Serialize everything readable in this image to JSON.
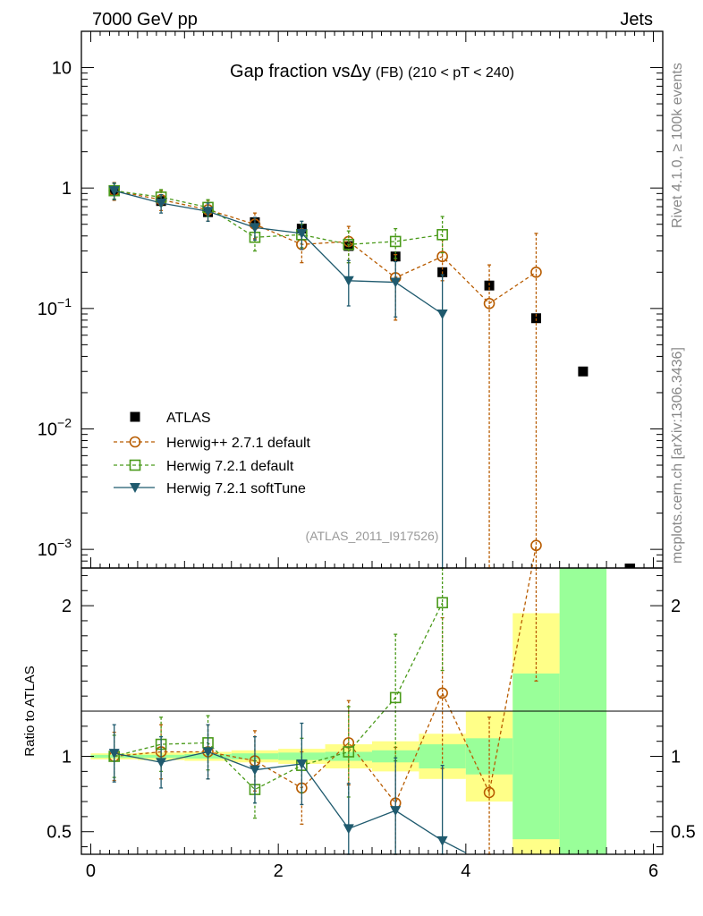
{
  "header": {
    "left": "7000 GeV pp",
    "right": "Jets"
  },
  "side": {
    "rivet": "Rivet 4.1.0, ≥ 100k events",
    "mcplots": "mcplots.cern.ch [arXiv:1306.3436]"
  },
  "chart_data": {
    "type": "scatter",
    "title_main": "Gap fraction vs",
    "title_delta": "Δy",
    "title_fb": "(FB)",
    "title_range": "(210 < pT < 240)",
    "watermark": "(ATLAS_2011_I917526)",
    "main_yscale": "log",
    "main_ylim": [
      0.0007,
      20
    ],
    "xlim": [
      -0.1,
      6.1
    ],
    "main_yticks": [
      {
        "value": 10,
        "label": "10"
      },
      {
        "value": 1,
        "label": "1"
      },
      {
        "value": 0.1,
        "base": "10",
        "exp": "−1"
      },
      {
        "value": 0.01,
        "base": "10",
        "exp": "−2"
      },
      {
        "value": 0.001,
        "base": "10",
        "exp": "−3"
      }
    ],
    "xticks": [
      0,
      2,
      4,
      6
    ],
    "ratio_ylabel": "Ratio to ATLAS",
    "ratio_ylim": [
      0.35,
      2.25
    ],
    "ratio_yticks": [
      0.5,
      1,
      2
    ],
    "series": [
      {
        "name": "ATLAS",
        "legend": "ATLAS",
        "color": "#000000",
        "marker": "square-filled",
        "x": [
          0.25,
          0.75,
          1.25,
          1.75,
          2.25,
          2.75,
          3.25,
          3.75,
          4.25,
          4.75,
          5.25,
          5.75
        ],
        "y": [
          0.95,
          0.78,
          0.63,
          0.52,
          0.46,
          0.33,
          0.27,
          0.2,
          0.155,
          0.083,
          0.03,
          0.0006
        ]
      },
      {
        "name": "Herwig++ 2.7.1 default",
        "legend": "Herwig++ 2.7.1 default",
        "color": "#b85c00",
        "marker": "circle-open",
        "dashed": true,
        "x": [
          0.25,
          0.75,
          1.25,
          1.75,
          2.25,
          2.75,
          3.25,
          3.75,
          4.25,
          4.75
        ],
        "y": [
          0.95,
          0.8,
          0.66,
          0.5,
          0.34,
          0.36,
          0.18,
          0.27,
          0.11,
          0.2
        ],
        "err_hi": [
          0.16,
          0.15,
          0.13,
          0.12,
          0.12,
          0.12,
          0.1,
          0.1,
          0.12,
          0.22
        ],
        "err_lo": [
          0.16,
          0.15,
          0.13,
          0.12,
          0.1,
          0.12,
          0.1,
          0.1,
          0.11,
          0.2
        ],
        "ratio": [
          1.0,
          1.03,
          1.03,
          0.97,
          0.79,
          1.09,
          0.69,
          1.42,
          0.76,
          2.4
        ],
        "ratio_err": [
          0.16,
          0.18,
          0.18,
          0.2,
          0.24,
          0.28,
          0.37,
          0.5,
          0.5,
          0.9
        ]
      },
      {
        "name": "Herwig 7.2.1 default",
        "legend": "Herwig 7.2.1 default",
        "color": "#4a9a1a",
        "marker": "square-open",
        "dashed": true,
        "x": [
          0.25,
          0.75,
          1.25,
          1.75,
          2.25,
          2.75,
          3.25,
          3.75
        ],
        "y": [
          0.95,
          0.84,
          0.69,
          0.39,
          0.41,
          0.34,
          0.36,
          0.41
        ],
        "err_hi": [
          0.14,
          0.13,
          0.11,
          0.09,
          0.09,
          0.1,
          0.1,
          0.17
        ],
        "err_lo": [
          0.14,
          0.13,
          0.11,
          0.09,
          0.09,
          0.1,
          0.1,
          0.12
        ],
        "ratio": [
          1.0,
          1.08,
          1.09,
          0.78,
          0.94,
          1.03,
          1.39,
          2.02
        ],
        "ratio_err": [
          0.14,
          0.18,
          0.18,
          0.19,
          0.18,
          0.3,
          0.42,
          0.45
        ]
      },
      {
        "name": "Herwig 7.2.1 softTune",
        "legend": "Herwig 7.2.1 softTune",
        "color": "#1f5a6e",
        "marker": "triangle-down-filled",
        "dashed": false,
        "x": [
          0.25,
          0.75,
          1.25,
          1.75,
          2.25,
          2.75,
          3.25,
          3.75
        ],
        "y": [
          0.95,
          0.75,
          0.64,
          0.47,
          0.42,
          0.17,
          0.165,
          0.09
        ],
        "err_hi": [
          0.15,
          0.13,
          0.11,
          0.1,
          0.11,
          0.08,
          0.08,
          0.1
        ],
        "err_lo": [
          0.15,
          0.13,
          0.11,
          0.1,
          0.11,
          0.065,
          0.08,
          0.09
        ],
        "ratio": [
          1.02,
          0.96,
          1.03,
          0.91,
          0.95,
          0.52,
          0.64,
          0.44
        ],
        "ratio_err": [
          0.19,
          0.17,
          0.18,
          0.22,
          0.27,
          0.3,
          0.35,
          0.5
        ],
        "ratio_tail": [
          4.0,
          0.36
        ]
      }
    ],
    "ratio_bands": [
      {
        "xlo": 0.0,
        "xhi": 0.5,
        "stat": 0.01,
        "tot": 0.02
      },
      {
        "xlo": 0.5,
        "xhi": 1.0,
        "stat": 0.01,
        "tot": 0.025
      },
      {
        "xlo": 1.0,
        "xhi": 1.5,
        "stat": 0.015,
        "tot": 0.03
      },
      {
        "xlo": 1.5,
        "xhi": 2.0,
        "stat": 0.02,
        "tot": 0.04
      },
      {
        "xlo": 2.0,
        "xhi": 2.5,
        "stat": 0.025,
        "tot": 0.05
      },
      {
        "xlo": 2.5,
        "xhi": 3.0,
        "stat": 0.03,
        "tot": 0.08
      },
      {
        "xlo": 3.0,
        "xhi": 3.5,
        "stat": 0.04,
        "tot": 0.1
      },
      {
        "xlo": 3.5,
        "xhi": 4.0,
        "stat": 0.08,
        "tot": 0.15
      },
      {
        "xlo": 4.0,
        "xhi": 4.5,
        "stat": 0.12,
        "tot": 0.3
      },
      {
        "xlo": 4.5,
        "xhi": 5.0,
        "stat": 0.55,
        "tot": 0.95
      },
      {
        "xlo": 5.0,
        "xhi": 5.5,
        "stat": 1.5,
        "tot": 1.5
      }
    ]
  }
}
